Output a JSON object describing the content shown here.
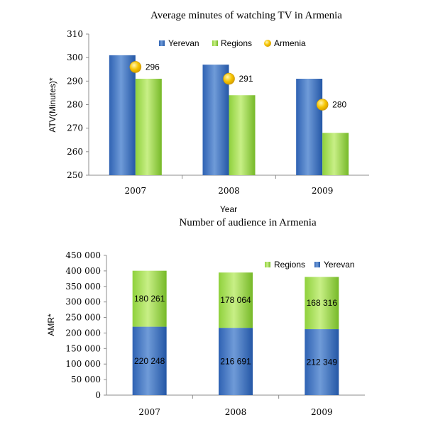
{
  "colors": {
    "yerevan_light": "#6f9bd8",
    "yerevan_dark": "#2457a6",
    "regions_light": "#c3ec7a",
    "regions_dark": "#7dbf2c",
    "armenia_marker": "#f6c400",
    "axis": "#8c8c8c"
  },
  "chart_data": [
    {
      "type": "bar",
      "title": "Average minutes of watching TV in Armenia",
      "xlabel": "Year",
      "ylabel": "ATV(Minutes)*",
      "categories": [
        "2007",
        "2008",
        "2009"
      ],
      "ylim": [
        250,
        310
      ],
      "yticks": [
        "250",
        "260",
        "270",
        "280",
        "290",
        "300",
        "310"
      ],
      "grid": false,
      "legend_position": "top-right",
      "series": [
        {
          "name": "Yerevan",
          "kind": "bar",
          "values": [
            301,
            297,
            291
          ]
        },
        {
          "name": "Regions",
          "kind": "bar",
          "values": [
            291,
            284,
            268
          ]
        },
        {
          "name": "Armenia",
          "kind": "marker",
          "values": [
            296,
            291,
            280
          ],
          "labels": [
            "296",
            "291",
            "280"
          ]
        }
      ]
    },
    {
      "type": "bar",
      "stacked": true,
      "title": "Number of audience in Armenia",
      "xlabel": "",
      "ylabel": "AMR*",
      "categories": [
        "2007",
        "2008",
        "2009"
      ],
      "ylim": [
        0,
        450000
      ],
      "yticks": [
        "0",
        "50 000",
        "100 000",
        "150 000",
        "200 000",
        "250 000",
        "300 000",
        "350 000",
        "400 000",
        "450 000"
      ],
      "grid": false,
      "legend_position": "top-right",
      "series": [
        {
          "name": "Yerevan",
          "values": [
            220248,
            216691,
            212349
          ],
          "labels": [
            "220 248",
            "216 691",
            "212 349"
          ]
        },
        {
          "name": "Regions",
          "values": [
            180261,
            178064,
            168316
          ],
          "labels": [
            "180 261",
            "178 064",
            "168 316"
          ]
        }
      ],
      "legend_order": [
        "Regions",
        "Yerevan"
      ]
    }
  ]
}
